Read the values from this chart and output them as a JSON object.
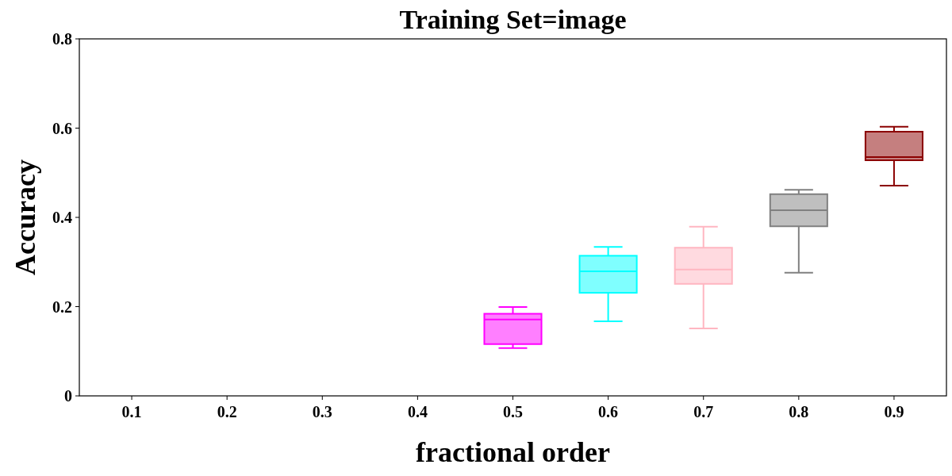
{
  "chart_data": {
    "type": "box",
    "title": "Training Set=image",
    "xlabel": "fractional order",
    "ylabel": "Accuracy",
    "categories": [
      "0.1",
      "0.2",
      "0.3",
      "0.4",
      "0.5",
      "0.6",
      "0.7",
      "0.8",
      "0.9"
    ],
    "boxes": [
      null,
      null,
      null,
      null,
      {
        "low": 0.107,
        "q1": 0.116,
        "median": 0.171,
        "q3": 0.184,
        "high": 0.199
      },
      {
        "low": 0.167,
        "q1": 0.231,
        "median": 0.279,
        "q3": 0.314,
        "high": 0.334
      },
      {
        "low": 0.151,
        "q1": 0.251,
        "median": 0.283,
        "q3": 0.332,
        "high": 0.379
      },
      {
        "low": 0.276,
        "q1": 0.38,
        "median": 0.416,
        "q3": 0.452,
        "high": 0.462
      },
      {
        "low": 0.471,
        "q1": 0.528,
        "median": 0.535,
        "q3": 0.592,
        "high": 0.603
      }
    ],
    "colors": [
      null,
      null,
      null,
      null,
      "#ff00ff",
      "#00ffff",
      "#ffb6c1",
      "#808080",
      "#8b0000"
    ],
    "ylim": [
      0,
      0.8
    ],
    "yticks": [
      {
        "value": 0,
        "label": "0"
      },
      0.2,
      0.4,
      0.6,
      0.8
    ],
    "grid": false
  }
}
